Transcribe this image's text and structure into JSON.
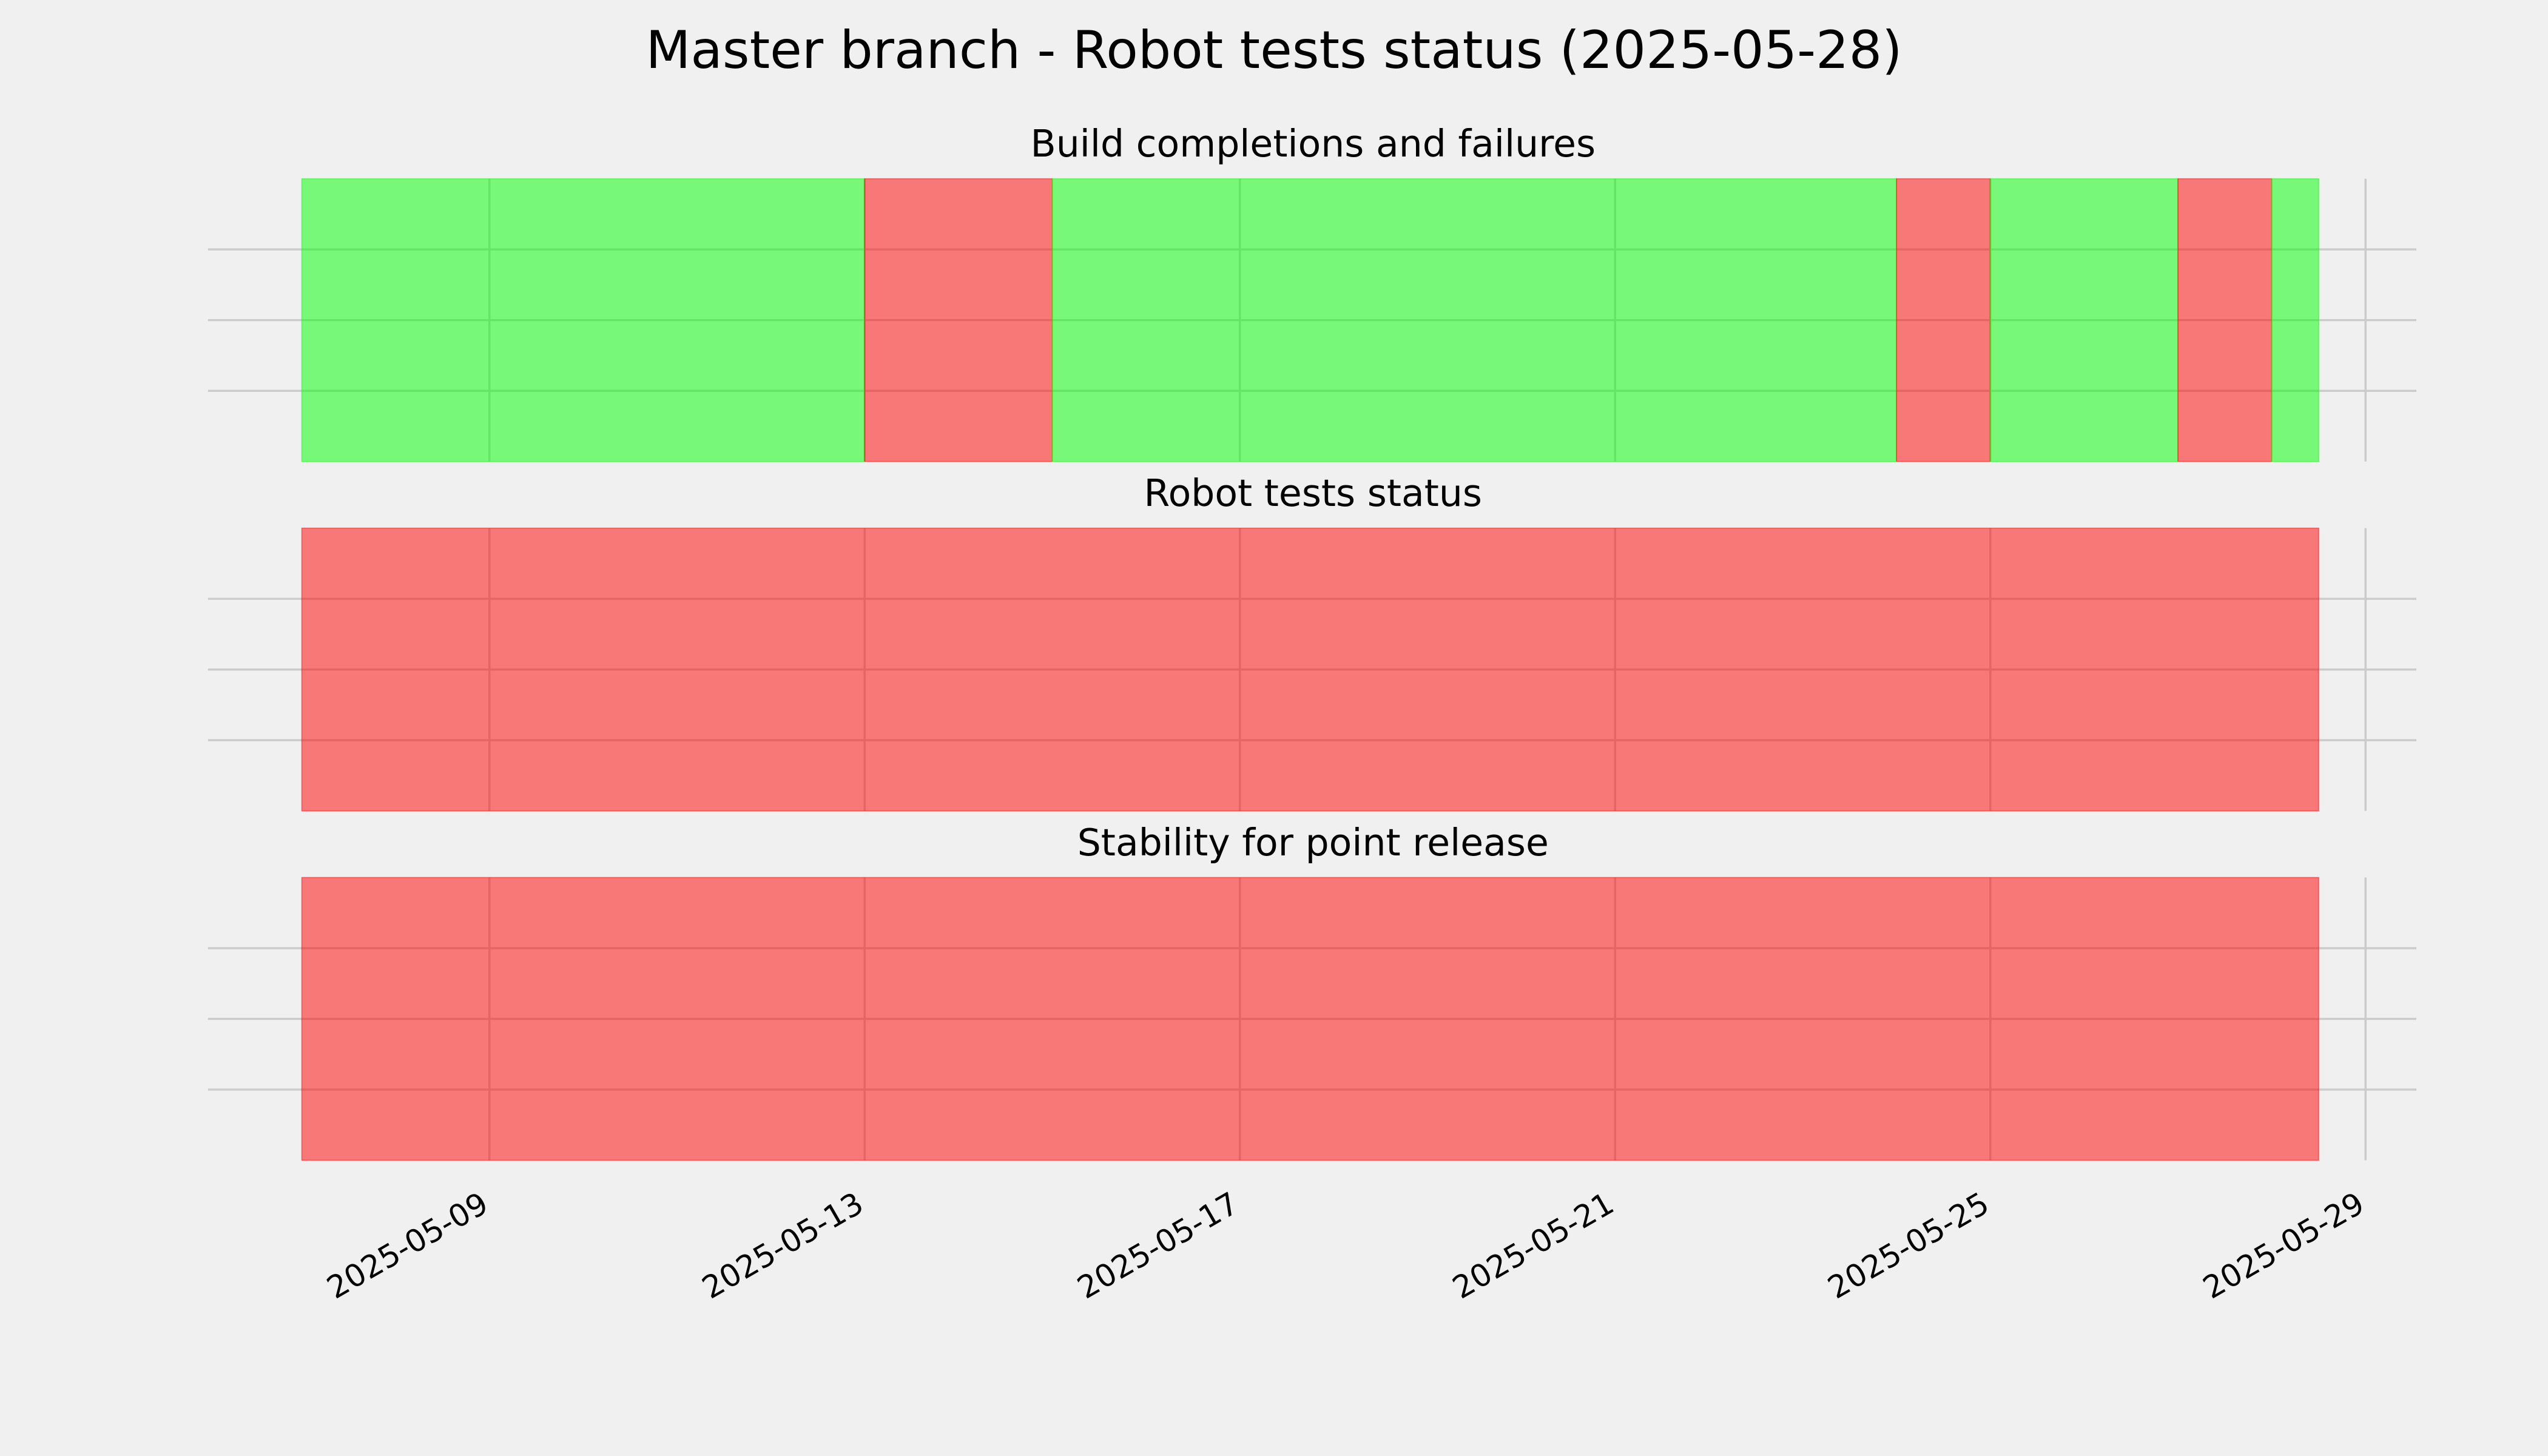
{
  "title": "Master branch - Robot tests status (2025-05-28)",
  "chart_data": [
    {
      "type": "timeline",
      "title": "Build completions and failures",
      "x": [
        "2025-05-07",
        "2025-05-13",
        "2025-05-15",
        "2025-05-24",
        "2025-05-25",
        "2025-05-27",
        "2025-05-28",
        "2025-05-28T12:00"
      ],
      "colors": [
        "#00ff00",
        "#ff0000",
        "#00ff00",
        "#ff0000",
        "#00ff00",
        "#ff0000",
        "#00ff00"
      ],
      "alpha": 0.5,
      "xlim": [
        "2025-05-06",
        "2025-05-29T13:00"
      ],
      "xticks": [
        "2025-05-09",
        "2025-05-13",
        "2025-05-17",
        "2025-05-21",
        "2025-05-25",
        "2025-05-29"
      ],
      "ylim": [
        0,
        1
      ],
      "yticks": [
        0.25,
        0.5,
        0.75
      ],
      "grid": true
    },
    {
      "type": "timeline",
      "title": "Robot tests status",
      "x": [
        "2025-05-07",
        "2025-05-28T12:00"
      ],
      "colors": [
        "#ff0000"
      ],
      "alpha": 0.5,
      "xlim": [
        "2025-05-06",
        "2025-05-29T13:00"
      ],
      "xticks": [
        "2025-05-09",
        "2025-05-13",
        "2025-05-17",
        "2025-05-21",
        "2025-05-25",
        "2025-05-29"
      ],
      "ylim": [
        0,
        1
      ],
      "yticks": [
        0.25,
        0.5,
        0.75
      ],
      "grid": true
    },
    {
      "type": "timeline",
      "title": "Stability for point release",
      "x": [
        "2025-05-07",
        "2025-05-28T12:00"
      ],
      "colors": [
        "#ff0000"
      ],
      "alpha": 0.5,
      "xlim": [
        "2025-05-06",
        "2025-05-29T13:00"
      ],
      "xticks": [
        "2025-05-09",
        "2025-05-13",
        "2025-05-17",
        "2025-05-21",
        "2025-05-25",
        "2025-05-29"
      ],
      "ylim": [
        0,
        1
      ],
      "yticks": [
        0.25,
        0.5,
        0.75
      ],
      "grid": true
    }
  ]
}
